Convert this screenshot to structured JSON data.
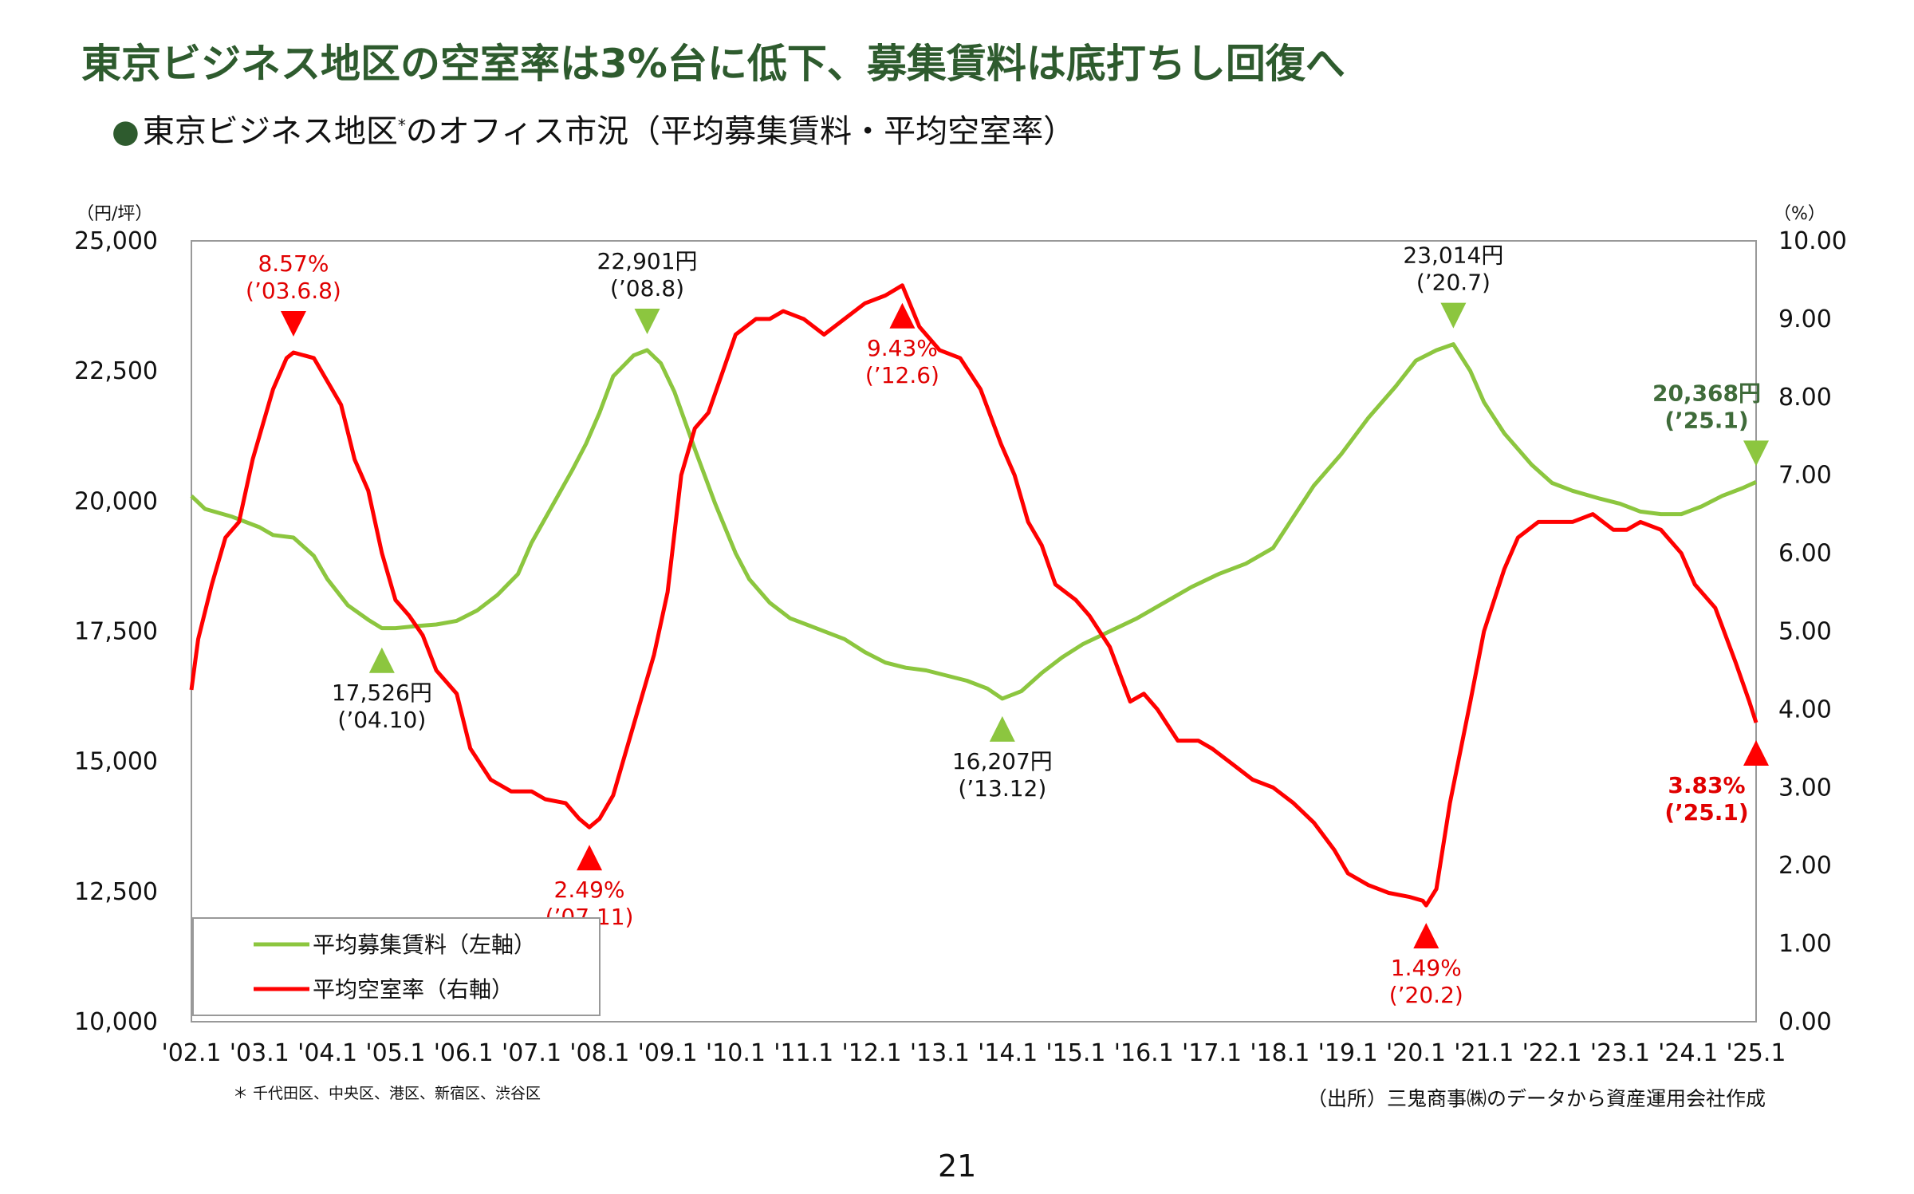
{
  "title": "東京ビジネス地区の空室率は3%台に低下、募集賃料は底打ちし回復へ",
  "subtitle": {
    "bullet": "●",
    "main": "東京ビジネス地区",
    "note_mark": "*",
    "rest": "のオフィス市況（平均募集賃料・平均空室率）"
  },
  "footnote": "＊ 千代田区、中央区、港区、新宿区、渋谷区",
  "source": "（出所）三鬼商事㈱のデータから資産運用会社作成",
  "page_number": "21",
  "colors": {
    "title": "#2e5b2e",
    "rent": "#8cc63f",
    "vacancy": "#ff0000",
    "rent_label_dark": "#3f6b3a"
  },
  "chart_data": {
    "type": "line",
    "y_left": {
      "unit_label": "（円/坪）",
      "range": [
        10000,
        25000
      ],
      "ticks": [
        "10,000",
        "12,500",
        "15,000",
        "17,500",
        "20,000",
        "22,500",
        "25,000"
      ]
    },
    "y_right": {
      "unit_label": "（%）",
      "range": [
        0,
        10
      ],
      "ticks": [
        "0.00",
        "1.00",
        "2.00",
        "3.00",
        "4.00",
        "5.00",
        "6.00",
        "7.00",
        "8.00",
        "9.00",
        "10.00"
      ]
    },
    "x_ticks": [
      "'02.1",
      "'03.1",
      "'04.1",
      "'05.1",
      "'06.1",
      "'07.1",
      "'08.1",
      "'09.1",
      "'10.1",
      "'11.1",
      "'12.1",
      "'13.1",
      "'14.1",
      "'15.1",
      "'16.1",
      "'17.1",
      "'18.1",
      "'19.1",
      "'20.1",
      "'21.1",
      "'22.1",
      "'23.1",
      "'24.1",
      "'25.1"
    ],
    "x_range": [
      2002.0,
      2025.0
    ],
    "series": [
      {
        "name": "平均募集賃料（左軸）",
        "axis": "left",
        "points": [
          [
            2002.0,
            20100
          ],
          [
            2002.2,
            19850
          ],
          [
            2002.6,
            19700
          ],
          [
            2003.0,
            19500
          ],
          [
            2003.2,
            19350
          ],
          [
            2003.5,
            19300
          ],
          [
            2003.8,
            18950
          ],
          [
            2004.0,
            18500
          ],
          [
            2004.3,
            18000
          ],
          [
            2004.6,
            17720
          ],
          [
            2004.8,
            17560
          ],
          [
            2005.0,
            17560
          ],
          [
            2005.3,
            17600
          ],
          [
            2005.6,
            17630
          ],
          [
            2005.9,
            17700
          ],
          [
            2006.2,
            17900
          ],
          [
            2006.5,
            18200
          ],
          [
            2006.8,
            18600
          ],
          [
            2007.0,
            19200
          ],
          [
            2007.3,
            19900
          ],
          [
            2007.6,
            20600
          ],
          [
            2007.8,
            21100
          ],
          [
            2008.0,
            21700
          ],
          [
            2008.2,
            22400
          ],
          [
            2008.5,
            22800
          ],
          [
            2008.7,
            22901
          ],
          [
            2008.9,
            22650
          ],
          [
            2009.1,
            22100
          ],
          [
            2009.4,
            21000
          ],
          [
            2009.7,
            19950
          ],
          [
            2010.0,
            19000
          ],
          [
            2010.2,
            18500
          ],
          [
            2010.5,
            18050
          ],
          [
            2010.8,
            17750
          ],
          [
            2011.2,
            17550
          ],
          [
            2011.6,
            17350
          ],
          [
            2011.9,
            17100
          ],
          [
            2012.2,
            16900
          ],
          [
            2012.5,
            16800
          ],
          [
            2012.8,
            16750
          ],
          [
            2013.1,
            16650
          ],
          [
            2013.4,
            16550
          ],
          [
            2013.7,
            16400
          ],
          [
            2013.92,
            16207
          ],
          [
            2014.2,
            16350
          ],
          [
            2014.5,
            16700
          ],
          [
            2014.8,
            17000
          ],
          [
            2015.1,
            17250
          ],
          [
            2015.5,
            17500
          ],
          [
            2015.9,
            17750
          ],
          [
            2016.3,
            18050
          ],
          [
            2016.7,
            18350
          ],
          [
            2017.1,
            18600
          ],
          [
            2017.5,
            18800
          ],
          [
            2017.9,
            19100
          ],
          [
            2018.2,
            19700
          ],
          [
            2018.5,
            20300
          ],
          [
            2018.9,
            20900
          ],
          [
            2019.3,
            21600
          ],
          [
            2019.7,
            22200
          ],
          [
            2020.0,
            22700
          ],
          [
            2020.3,
            22900
          ],
          [
            2020.55,
            23014
          ],
          [
            2020.8,
            22500
          ],
          [
            2021.0,
            21900
          ],
          [
            2021.3,
            21300
          ],
          [
            2021.7,
            20700
          ],
          [
            2022.0,
            20350
          ],
          [
            2022.3,
            20200
          ],
          [
            2022.7,
            20050
          ],
          [
            2023.0,
            19950
          ],
          [
            2023.3,
            19800
          ],
          [
            2023.6,
            19750
          ],
          [
            2023.9,
            19750
          ],
          [
            2024.2,
            19900
          ],
          [
            2024.5,
            20100
          ],
          [
            2024.8,
            20250
          ],
          [
            2025.0,
            20368
          ]
        ]
      },
      {
        "name": "平均空室率（右軸）",
        "axis": "right",
        "points": [
          [
            2002.0,
            4.25
          ],
          [
            2002.1,
            4.9
          ],
          [
            2002.3,
            5.6
          ],
          [
            2002.5,
            6.2
          ],
          [
            2002.7,
            6.4
          ],
          [
            2002.9,
            7.2
          ],
          [
            2003.0,
            7.5
          ],
          [
            2003.2,
            8.1
          ],
          [
            2003.4,
            8.5
          ],
          [
            2003.5,
            8.57
          ],
          [
            2003.8,
            8.5
          ],
          [
            2004.0,
            8.2
          ],
          [
            2004.2,
            7.9
          ],
          [
            2004.4,
            7.2
          ],
          [
            2004.6,
            6.8
          ],
          [
            2004.8,
            6.0
          ],
          [
            2005.0,
            5.4
          ],
          [
            2005.2,
            5.2
          ],
          [
            2005.4,
            4.95
          ],
          [
            2005.6,
            4.5
          ],
          [
            2005.9,
            4.2
          ],
          [
            2006.1,
            3.5
          ],
          [
            2006.4,
            3.1
          ],
          [
            2006.7,
            2.95
          ],
          [
            2007.0,
            2.95
          ],
          [
            2007.2,
            2.85
          ],
          [
            2007.5,
            2.8
          ],
          [
            2007.7,
            2.6
          ],
          [
            2007.85,
            2.49
          ],
          [
            2008.0,
            2.6
          ],
          [
            2008.2,
            2.9
          ],
          [
            2008.5,
            3.8
          ],
          [
            2008.8,
            4.7
          ],
          [
            2009.0,
            5.5
          ],
          [
            2009.2,
            7.0
          ],
          [
            2009.4,
            7.6
          ],
          [
            2009.6,
            7.8
          ],
          [
            2009.8,
            8.3
          ],
          [
            2010.0,
            8.8
          ],
          [
            2010.3,
            9.0
          ],
          [
            2010.5,
            9.0
          ],
          [
            2010.7,
            9.1
          ],
          [
            2011.0,
            9.0
          ],
          [
            2011.3,
            8.8
          ],
          [
            2011.6,
            9.0
          ],
          [
            2011.9,
            9.2
          ],
          [
            2012.2,
            9.3
          ],
          [
            2012.45,
            9.43
          ],
          [
            2012.7,
            8.9
          ],
          [
            2013.0,
            8.6
          ],
          [
            2013.3,
            8.5
          ],
          [
            2013.6,
            8.1
          ],
          [
            2013.9,
            7.4
          ],
          [
            2014.1,
            7.0
          ],
          [
            2014.3,
            6.4
          ],
          [
            2014.5,
            6.1
          ],
          [
            2014.7,
            5.6
          ],
          [
            2015.0,
            5.4
          ],
          [
            2015.2,
            5.2
          ],
          [
            2015.5,
            4.8
          ],
          [
            2015.8,
            4.1
          ],
          [
            2016.0,
            4.2
          ],
          [
            2016.2,
            4.0
          ],
          [
            2016.5,
            3.6
          ],
          [
            2016.8,
            3.6
          ],
          [
            2017.0,
            3.5
          ],
          [
            2017.3,
            3.3
          ],
          [
            2017.6,
            3.1
          ],
          [
            2017.9,
            3.0
          ],
          [
            2018.2,
            2.8
          ],
          [
            2018.5,
            2.55
          ],
          [
            2018.8,
            2.2
          ],
          [
            2019.0,
            1.9
          ],
          [
            2019.3,
            1.75
          ],
          [
            2019.6,
            1.65
          ],
          [
            2019.9,
            1.6
          ],
          [
            2020.1,
            1.55
          ],
          [
            2020.15,
            1.49
          ],
          [
            2020.3,
            1.7
          ],
          [
            2020.5,
            2.8
          ],
          [
            2020.8,
            4.1
          ],
          [
            2021.0,
            5.0
          ],
          [
            2021.3,
            5.8
          ],
          [
            2021.5,
            6.2
          ],
          [
            2021.8,
            6.4
          ],
          [
            2022.0,
            6.4
          ],
          [
            2022.3,
            6.4
          ],
          [
            2022.6,
            6.5
          ],
          [
            2022.9,
            6.3
          ],
          [
            2023.1,
            6.3
          ],
          [
            2023.3,
            6.4
          ],
          [
            2023.6,
            6.3
          ],
          [
            2023.9,
            6.0
          ],
          [
            2024.1,
            5.6
          ],
          [
            2024.4,
            5.3
          ],
          [
            2024.7,
            4.6
          ],
          [
            2024.9,
            4.1
          ],
          [
            2025.0,
            3.83
          ]
        ]
      }
    ],
    "annotations": [
      {
        "series": 1,
        "x": 2003.5,
        "y": 8.57,
        "value": "8.57%",
        "date": "(’03.6.8)",
        "marker": "down",
        "color": "#e00000",
        "bold": false
      },
      {
        "series": 0,
        "x": 2008.7,
        "y": 22901,
        "value": "22,901円",
        "date": "(’08.8)",
        "marker": "down",
        "color": "#111111",
        "bold": false
      },
      {
        "series": 1,
        "x": 2012.45,
        "y": 9.43,
        "value": "9.43%",
        "date": "(’12.6)",
        "marker": "up",
        "color": "#e00000",
        "bold": false
      },
      {
        "series": 0,
        "x": 2020.55,
        "y": 23014,
        "value": "23,014円",
        "date": "(’20.7)",
        "marker": "down",
        "color": "#111111",
        "bold": false
      },
      {
        "series": 0,
        "x": 2025.0,
        "y": 20368,
        "value": "20,368円",
        "date": "(’25.1)",
        "marker": "down",
        "color": "#3f6b3a",
        "bold": true
      },
      {
        "series": 0,
        "x": 2004.8,
        "y": 17526,
        "value": "17,526円",
        "date": "(’04.10)",
        "marker": "up",
        "color": "#111111",
        "bold": false
      },
      {
        "series": 1,
        "x": 2007.85,
        "y": 2.49,
        "value": "2.49%",
        "date": "(’07.11)",
        "marker": "up",
        "color": "#e00000",
        "bold": false
      },
      {
        "series": 0,
        "x": 2013.92,
        "y": 16207,
        "value": "16,207円",
        "date": "(’13.12)",
        "marker": "up",
        "color": "#111111",
        "bold": false
      },
      {
        "series": 1,
        "x": 2020.15,
        "y": 1.49,
        "value": "1.49%",
        "date": "(’20.2)",
        "marker": "up",
        "color": "#e00000",
        "bold": false
      },
      {
        "series": 1,
        "x": 2025.0,
        "y": 3.83,
        "value": "3.83%",
        "date": "(’25.1)",
        "marker": "up",
        "color": "#e00000",
        "bold": true
      }
    ],
    "legend": {
      "placement": "bottom-left",
      "items": [
        "平均募集賃料（左軸）",
        "平均空室率（右軸）"
      ]
    },
    "grid": false
  }
}
